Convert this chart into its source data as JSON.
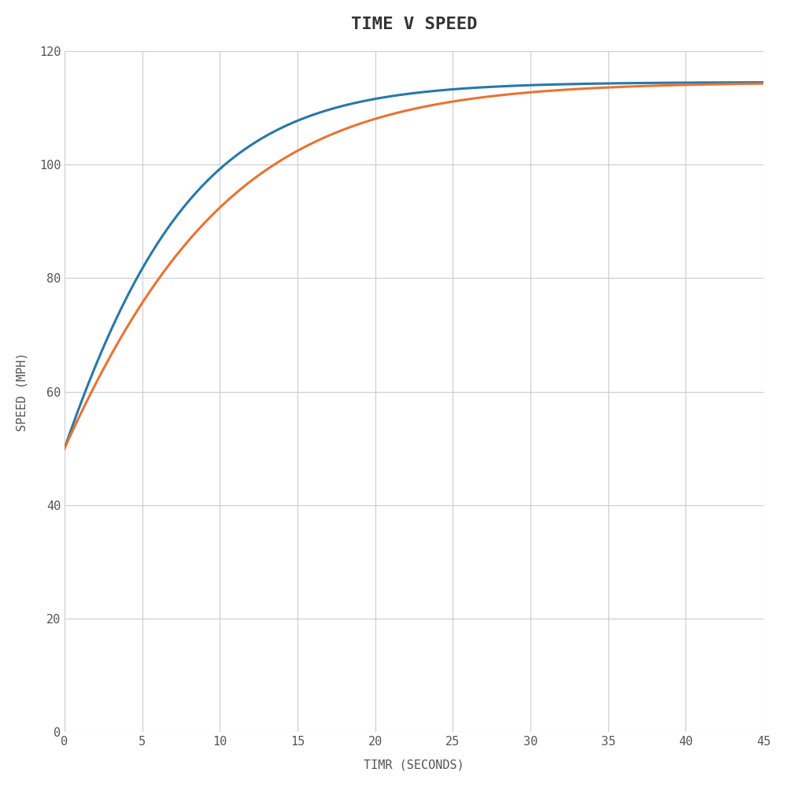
{
  "title": "TIME V SPEED",
  "xlabel": "TIMR (SECONDS)",
  "ylabel": "SPEED (MPH)",
  "xlim": [
    0,
    45
  ],
  "ylim": [
    0,
    120
  ],
  "xticks": [
    0,
    5,
    10,
    15,
    20,
    25,
    30,
    35,
    40,
    45
  ],
  "yticks": [
    0,
    20,
    40,
    60,
    80,
    100,
    120
  ],
  "v0": 50,
  "v_terminal_1": 114.5,
  "v_terminal_2": 114.5,
  "k1": 0.085,
  "k2": 0.065,
  "color_1": "#2878a8",
  "color_2": "#e87332",
  "line_width": 2.2,
  "background_color": "#ffffff",
  "plot_bg_color": "#ffffff",
  "grid_color": "#cccccc",
  "title_fontsize": 16,
  "label_fontsize": 11,
  "tick_fontsize": 11,
  "title_color": "#333333",
  "label_color": "#555555",
  "tick_color": "#555555"
}
